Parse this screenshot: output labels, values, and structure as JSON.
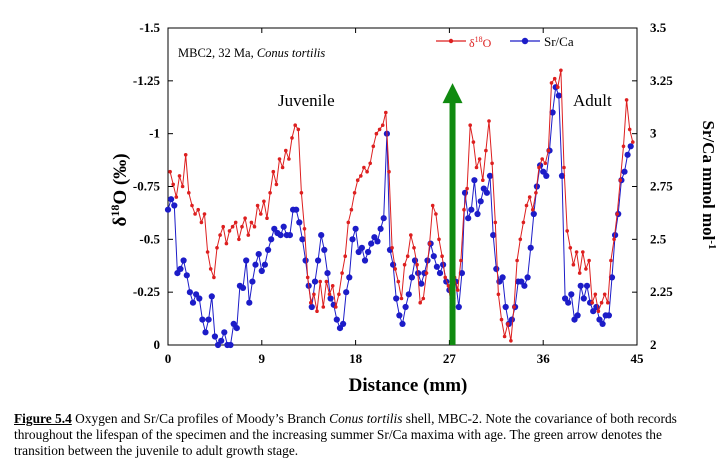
{
  "chart_data": {
    "type": "line",
    "title": "MBC2, 32 Ma, Conus tortilis",
    "title_parts": [
      "MBC2, 32 Ma, ",
      "Conus tortilis"
    ],
    "xlabel": "Distance (mm)",
    "ylabel_left": "δ18O (‰)",
    "ylabel_right": "Sr/Ca mmol mol-1",
    "xlim": [
      0,
      45
    ],
    "x_ticks": [
      "0",
      "9",
      "18",
      "27",
      "36",
      "45"
    ],
    "y_left_lim": [
      0,
      -1.5
    ],
    "y_left_ticks": [
      "0",
      "-0.25",
      "-0.5",
      "-0.75",
      "-1",
      "-1.25",
      "-1.5"
    ],
    "y_right_lim": [
      2,
      3.5
    ],
    "y_right_ticks": [
      "2",
      "2.25",
      "2.5",
      "2.75",
      "3",
      "3.25",
      "3.5"
    ],
    "grid": false,
    "legend_position": "top-right",
    "annotations": [
      "Juvenile",
      "Adult"
    ],
    "arrow": {
      "x": 27.3,
      "y_from": 0,
      "y_to": -1.22,
      "color": "#108a10"
    },
    "series": [
      {
        "name": "δ18O",
        "axis": "left",
        "color": "#dd1f1f",
        "points": [
          [
            0.2,
            -0.82
          ],
          [
            0.5,
            -0.76
          ],
          [
            0.8,
            -0.7
          ],
          [
            1.1,
            -0.8
          ],
          [
            1.4,
            -0.75
          ],
          [
            1.7,
            -0.9
          ],
          [
            2.0,
            -0.72
          ],
          [
            2.3,
            -0.66
          ],
          [
            2.6,
            -0.62
          ],
          [
            2.9,
            -0.64
          ],
          [
            3.2,
            -0.58
          ],
          [
            3.5,
            -0.62
          ],
          [
            3.8,
            -0.44
          ],
          [
            4.1,
            -0.36
          ],
          [
            4.4,
            -0.32
          ],
          [
            4.7,
            -0.46
          ],
          [
            5.0,
            -0.52
          ],
          [
            5.3,
            -0.56
          ],
          [
            5.6,
            -0.48
          ],
          [
            5.9,
            -0.54
          ],
          [
            6.2,
            -0.56
          ],
          [
            6.5,
            -0.58
          ],
          [
            6.8,
            -0.5
          ],
          [
            7.1,
            -0.56
          ],
          [
            7.4,
            -0.6
          ],
          [
            7.7,
            -0.52
          ],
          [
            8.0,
            -0.58
          ],
          [
            8.3,
            -0.56
          ],
          [
            8.6,
            -0.66
          ],
          [
            8.9,
            -0.62
          ],
          [
            9.2,
            -0.68
          ],
          [
            9.5,
            -0.6
          ],
          [
            9.8,
            -0.72
          ],
          [
            10.1,
            -0.82
          ],
          [
            10.4,
            -0.76
          ],
          [
            10.7,
            -0.88
          ],
          [
            11.0,
            -0.84
          ],
          [
            11.3,
            -0.92
          ],
          [
            11.6,
            -0.88
          ],
          [
            11.9,
            -0.98
          ],
          [
            12.2,
            -1.04
          ],
          [
            12.5,
            -1.02
          ],
          [
            12.8,
            -0.72
          ],
          [
            13.1,
            -0.55
          ],
          [
            13.4,
            -0.32
          ],
          [
            13.7,
            -0.2
          ],
          [
            14.0,
            -0.24
          ],
          [
            14.3,
            -0.16
          ],
          [
            14.6,
            -0.3
          ],
          [
            14.9,
            -0.18
          ],
          [
            15.2,
            -0.3
          ],
          [
            15.5,
            -0.24
          ],
          [
            15.8,
            -0.28
          ],
          [
            16.1,
            -0.18
          ],
          [
            16.4,
            -0.24
          ],
          [
            16.7,
            -0.34
          ],
          [
            17.0,
            -0.42
          ],
          [
            17.3,
            -0.58
          ],
          [
            17.6,
            -0.64
          ],
          [
            17.9,
            -0.72
          ],
          [
            18.2,
            -0.78
          ],
          [
            18.5,
            -0.8
          ],
          [
            18.8,
            -0.84
          ],
          [
            19.1,
            -0.82
          ],
          [
            19.4,
            -0.86
          ],
          [
            19.7,
            -0.94
          ],
          [
            20.0,
            -1.0
          ],
          [
            20.3,
            -1.02
          ],
          [
            20.6,
            -1.04
          ],
          [
            20.9,
            -1.1
          ],
          [
            21.2,
            -0.82
          ],
          [
            21.5,
            -0.46
          ],
          [
            21.8,
            -0.36
          ],
          [
            22.1,
            -0.3
          ],
          [
            22.4,
            -0.22
          ],
          [
            22.7,
            -0.38
          ],
          [
            23.0,
            -0.42
          ],
          [
            23.3,
            -0.52
          ],
          [
            23.6,
            -0.46
          ],
          [
            23.9,
            -0.38
          ],
          [
            24.2,
            -0.2
          ],
          [
            24.5,
            -0.22
          ],
          [
            24.8,
            -0.34
          ],
          [
            25.1,
            -0.48
          ],
          [
            25.4,
            -0.66
          ],
          [
            25.7,
            -0.62
          ],
          [
            26.0,
            -0.5
          ],
          [
            26.3,
            -0.42
          ],
          [
            26.6,
            -0.32
          ],
          [
            26.9,
            -0.28
          ],
          [
            27.2,
            -0.18
          ],
          [
            27.5,
            -0.32
          ],
          [
            27.8,
            -0.26
          ],
          [
            28.1,
            -0.4
          ],
          [
            28.4,
            -0.64
          ],
          [
            28.7,
            -0.74
          ],
          [
            29.0,
            -1.04
          ],
          [
            29.3,
            -0.96
          ],
          [
            29.6,
            -0.84
          ],
          [
            29.9,
            -0.88
          ],
          [
            30.2,
            -0.78
          ],
          [
            30.5,
            -0.92
          ],
          [
            30.8,
            -1.06
          ],
          [
            31.1,
            -0.86
          ],
          [
            31.4,
            -0.58
          ],
          [
            31.7,
            -0.24
          ],
          [
            32.0,
            -0.12
          ],
          [
            32.3,
            -0.04
          ],
          [
            32.6,
            -0.1
          ],
          [
            32.9,
            -0.02
          ],
          [
            33.2,
            -0.18
          ],
          [
            33.5,
            -0.4
          ],
          [
            33.8,
            -0.5
          ],
          [
            34.1,
            -0.58
          ],
          [
            34.4,
            -0.66
          ],
          [
            34.7,
            -0.7
          ],
          [
            35.0,
            -0.64
          ],
          [
            35.3,
            -0.72
          ],
          [
            35.6,
            -0.84
          ],
          [
            35.9,
            -0.88
          ],
          [
            36.2,
            -0.86
          ],
          [
            36.5,
            -0.92
          ],
          [
            36.8,
            -1.24
          ],
          [
            37.1,
            -1.26
          ],
          [
            37.4,
            -1.22
          ],
          [
            37.7,
            -1.3
          ],
          [
            38.0,
            -0.84
          ],
          [
            38.3,
            -0.54
          ],
          [
            38.6,
            -0.46
          ],
          [
            38.9,
            -0.38
          ],
          [
            39.2,
            -0.44
          ],
          [
            39.5,
            -0.34
          ],
          [
            39.8,
            -0.44
          ],
          [
            40.1,
            -0.36
          ],
          [
            40.4,
            -0.4
          ],
          [
            40.7,
            -0.2
          ],
          [
            41.0,
            -0.24
          ],
          [
            41.3,
            -0.16
          ],
          [
            41.6,
            -0.2
          ],
          [
            41.9,
            -0.24
          ],
          [
            42.2,
            -0.2
          ],
          [
            42.5,
            -0.4
          ],
          [
            42.8,
            -0.5
          ],
          [
            43.1,
            -0.62
          ],
          [
            43.4,
            -0.78
          ],
          [
            43.7,
            -0.94
          ],
          [
            44.0,
            -1.16
          ],
          [
            44.3,
            -1.02
          ],
          [
            44.6,
            -0.96
          ]
        ]
      },
      {
        "name": "Sr/Ca",
        "axis": "right",
        "color": "#1c1cc8",
        "points": [
          [
            0.0,
            2.64
          ],
          [
            0.3,
            2.69
          ],
          [
            0.6,
            2.66
          ],
          [
            0.9,
            2.34
          ],
          [
            1.2,
            2.36
          ],
          [
            1.5,
            2.4
          ],
          [
            1.8,
            2.33
          ],
          [
            2.1,
            2.25
          ],
          [
            2.4,
            2.2
          ],
          [
            2.7,
            2.24
          ],
          [
            3.0,
            2.22
          ],
          [
            3.3,
            2.12
          ],
          [
            3.6,
            2.06
          ],
          [
            3.9,
            2.12
          ],
          [
            4.2,
            2.23
          ],
          [
            4.5,
            2.04
          ],
          [
            4.8,
            2.0
          ],
          [
            5.1,
            2.02
          ],
          [
            5.4,
            2.06
          ],
          [
            5.7,
            2.0
          ],
          [
            6.0,
            2.0
          ],
          [
            6.3,
            2.1
          ],
          [
            6.6,
            2.08
          ],
          [
            6.9,
            2.28
          ],
          [
            7.2,
            2.27
          ],
          [
            7.5,
            2.4
          ],
          [
            7.8,
            2.2
          ],
          [
            8.1,
            2.3
          ],
          [
            8.4,
            2.38
          ],
          [
            8.7,
            2.43
          ],
          [
            9.0,
            2.35
          ],
          [
            9.3,
            2.38
          ],
          [
            9.6,
            2.45
          ],
          [
            9.9,
            2.5
          ],
          [
            10.2,
            2.55
          ],
          [
            10.5,
            2.53
          ],
          [
            10.8,
            2.52
          ],
          [
            11.1,
            2.56
          ],
          [
            11.4,
            2.52
          ],
          [
            11.7,
            2.52
          ],
          [
            12.0,
            2.64
          ],
          [
            12.3,
            2.64
          ],
          [
            12.6,
            2.58
          ],
          [
            12.9,
            2.5
          ],
          [
            13.2,
            2.4
          ],
          [
            13.5,
            2.28
          ],
          [
            13.8,
            2.18
          ],
          [
            14.1,
            2.3
          ],
          [
            14.4,
            2.4
          ],
          [
            14.7,
            2.52
          ],
          [
            15.0,
            2.45
          ],
          [
            15.3,
            2.34
          ],
          [
            15.6,
            2.22
          ],
          [
            15.9,
            2.19
          ],
          [
            16.2,
            2.12
          ],
          [
            16.5,
            2.08
          ],
          [
            16.8,
            2.1
          ],
          [
            17.1,
            2.25
          ],
          [
            17.4,
            2.32
          ],
          [
            17.7,
            2.5
          ],
          [
            18.0,
            2.55
          ],
          [
            18.3,
            2.44
          ],
          [
            18.6,
            2.46
          ],
          [
            18.9,
            2.4
          ],
          [
            19.2,
            2.44
          ],
          [
            19.5,
            2.48
          ],
          [
            19.8,
            2.51
          ],
          [
            20.1,
            2.49
          ],
          [
            20.4,
            2.55
          ],
          [
            20.7,
            2.6
          ],
          [
            21.0,
            3.0
          ],
          [
            21.3,
            2.45
          ],
          [
            21.6,
            2.38
          ],
          [
            21.9,
            2.22
          ],
          [
            22.2,
            2.14
          ],
          [
            22.5,
            2.1
          ],
          [
            22.8,
            2.18
          ],
          [
            23.1,
            2.24
          ],
          [
            23.4,
            2.32
          ],
          [
            23.7,
            2.4
          ],
          [
            24.0,
            2.34
          ],
          [
            24.3,
            2.29
          ],
          [
            24.6,
            2.34
          ],
          [
            24.9,
            2.4
          ],
          [
            25.2,
            2.48
          ],
          [
            25.5,
            2.42
          ],
          [
            25.8,
            2.37
          ],
          [
            26.1,
            2.34
          ],
          [
            26.4,
            2.38
          ],
          [
            26.7,
            2.3
          ],
          [
            27.0,
            2.26
          ],
          [
            27.3,
            2.22
          ],
          [
            27.6,
            2.3
          ],
          [
            27.9,
            2.18
          ],
          [
            28.2,
            2.34
          ],
          [
            28.5,
            2.72
          ],
          [
            28.8,
            2.6
          ],
          [
            29.1,
            2.64
          ],
          [
            29.4,
            2.78
          ],
          [
            29.7,
            2.62
          ],
          [
            30.0,
            2.68
          ],
          [
            30.3,
            2.74
          ],
          [
            30.6,
            2.72
          ],
          [
            30.9,
            2.8
          ],
          [
            31.2,
            2.52
          ],
          [
            31.5,
            2.36
          ],
          [
            31.8,
            2.3
          ],
          [
            32.1,
            2.32
          ],
          [
            32.4,
            2.18
          ],
          [
            32.7,
            2.1
          ],
          [
            33.0,
            2.12
          ],
          [
            33.3,
            2.18
          ],
          [
            33.6,
            2.3
          ],
          [
            33.9,
            2.3
          ],
          [
            34.2,
            2.28
          ],
          [
            34.5,
            2.32
          ],
          [
            34.8,
            2.46
          ],
          [
            35.1,
            2.62
          ],
          [
            35.4,
            2.75
          ],
          [
            35.7,
            2.85
          ],
          [
            36.0,
            2.82
          ],
          [
            36.3,
            2.8
          ],
          [
            36.6,
            2.92
          ],
          [
            36.9,
            3.1
          ],
          [
            37.2,
            3.22
          ],
          [
            37.5,
            3.18
          ],
          [
            37.8,
            2.8
          ],
          [
            38.1,
            2.22
          ],
          [
            38.4,
            2.2
          ],
          [
            38.7,
            2.24
          ],
          [
            39.0,
            2.12
          ],
          [
            39.3,
            2.14
          ],
          [
            39.6,
            2.28
          ],
          [
            39.9,
            2.22
          ],
          [
            40.2,
            2.28
          ],
          [
            40.5,
            2.2
          ],
          [
            40.8,
            2.16
          ],
          [
            41.1,
            2.18
          ],
          [
            41.4,
            2.12
          ],
          [
            41.7,
            2.1
          ],
          [
            42.0,
            2.14
          ],
          [
            42.3,
            2.14
          ],
          [
            42.6,
            2.32
          ],
          [
            42.9,
            2.52
          ],
          [
            43.2,
            2.62
          ],
          [
            43.5,
            2.78
          ],
          [
            43.8,
            2.82
          ],
          [
            44.1,
            2.9
          ],
          [
            44.4,
            2.94
          ]
        ]
      }
    ]
  },
  "caption": {
    "label": "Figure 5.4",
    "text_before_species": " Oxygen and Sr/Ca profiles of Moody’s Branch ",
    "species": "Conus tortilis",
    "text_after_species": " shell, MBC-2. Note the covariance of both records throughout the lifespan of the specimen and the increasing summer Sr/Ca maxima with age.  The green arrow denotes the transition between the juvenile to adult growth stage."
  }
}
